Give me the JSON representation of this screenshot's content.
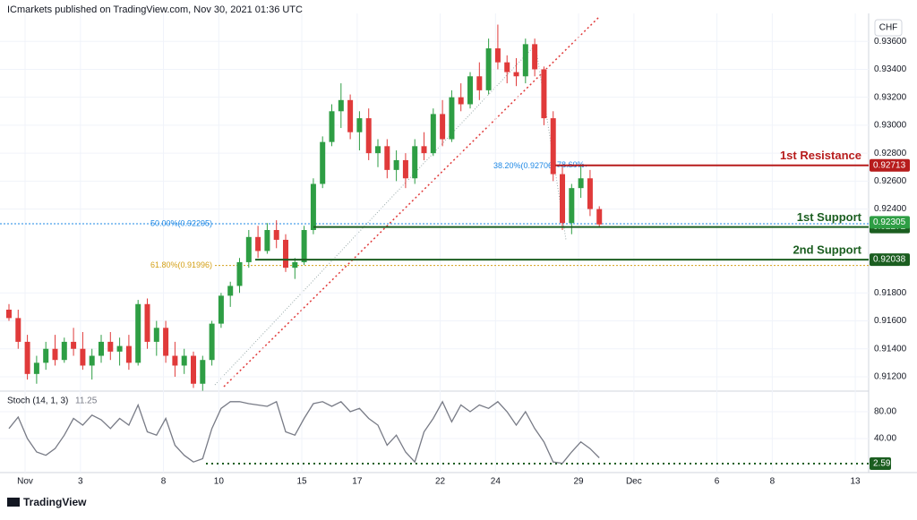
{
  "header": "ICmarkets published on TradingView.com, Nov 30, 2021 01:36 UTC",
  "currency": "CHF",
  "footer": "TradingView",
  "chart_data": [
    {
      "type": "candlestick",
      "up_color": "#2e9e44",
      "down_color": "#e03a3a",
      "xlim": [
        -0.97,
        93.2
      ],
      "ylim": [
        0.9111,
        0.938
      ],
      "xticks": [
        {
          "value": 1.75,
          "label": "Nov"
        },
        {
          "value": 7.75,
          "label": "3"
        },
        {
          "value": 16.75,
          "label": "8"
        },
        {
          "value": 22.75,
          "label": "10"
        },
        {
          "value": 31.75,
          "label": "15"
        },
        {
          "value": 37.75,
          "label": "17"
        },
        {
          "value": 46.75,
          "label": "22"
        },
        {
          "value": 52.75,
          "label": "24"
        },
        {
          "value": 61.75,
          "label": "29"
        },
        {
          "value": 67.75,
          "label": "Dec"
        },
        {
          "value": 76.75,
          "label": "6"
        },
        {
          "value": 82.75,
          "label": "8"
        },
        {
          "value": 91.75,
          "label": "13"
        }
      ],
      "yticks": [
        {
          "value": 0.936,
          "label": "0.93600"
        },
        {
          "value": 0.934,
          "label": "0.93400"
        },
        {
          "value": 0.932,
          "label": "0.93200"
        },
        {
          "value": 0.93,
          "label": "0.93000"
        },
        {
          "value": 0.928,
          "label": "0.92800"
        },
        {
          "value": 0.926,
          "label": "0.92600"
        },
        {
          "value": 0.924,
          "label": "0.92400"
        },
        {
          "value": 0.918,
          "label": "0.91800"
        },
        {
          "value": 0.916,
          "label": "0.91600"
        },
        {
          "value": 0.914,
          "label": "0.91400"
        },
        {
          "value": 0.912,
          "label": "0.91200"
        }
      ],
      "candles": [
        [
          0.9168,
          0.9172,
          0.916,
          0.9162
        ],
        [
          0.9162,
          0.9168,
          0.914,
          0.9145
        ],
        [
          0.9145,
          0.915,
          0.9118,
          0.9122
        ],
        [
          0.9122,
          0.9135,
          0.9115,
          0.913
        ],
        [
          0.913,
          0.9145,
          0.9125,
          0.914
        ],
        [
          0.914,
          0.915,
          0.9128,
          0.9132
        ],
        [
          0.9132,
          0.9148,
          0.913,
          0.9145
        ],
        [
          0.9145,
          0.9155,
          0.9135,
          0.914
        ],
        [
          0.914,
          0.9152,
          0.9125,
          0.9128
        ],
        [
          0.9128,
          0.914,
          0.9118,
          0.9135
        ],
        [
          0.9135,
          0.915,
          0.913,
          0.9145
        ],
        [
          0.9145,
          0.9152,
          0.9132,
          0.9138
        ],
        [
          0.9138,
          0.9148,
          0.9128,
          0.9142
        ],
        [
          0.9142,
          0.915,
          0.9125,
          0.913
        ],
        [
          0.913,
          0.9175,
          0.9128,
          0.9172
        ],
        [
          0.9172,
          0.9176,
          0.914,
          0.9145
        ],
        [
          0.9145,
          0.916,
          0.9135,
          0.9155
        ],
        [
          0.9155,
          0.916,
          0.913,
          0.9135
        ],
        [
          0.9135,
          0.9145,
          0.912,
          0.9128
        ],
        [
          0.9128,
          0.914,
          0.9122,
          0.9135
        ],
        [
          0.9135,
          0.9138,
          0.9112,
          0.9115
        ],
        [
          0.9115,
          0.9135,
          0.911,
          0.9132
        ],
        [
          0.9132,
          0.916,
          0.9128,
          0.9158
        ],
        [
          0.9158,
          0.918,
          0.9155,
          0.9178
        ],
        [
          0.9178,
          0.9188,
          0.917,
          0.9185
        ],
        [
          0.9185,
          0.9205,
          0.918,
          0.9202
        ],
        [
          0.9202,
          0.9225,
          0.9198,
          0.922
        ],
        [
          0.922,
          0.9228,
          0.9205,
          0.921
        ],
        [
          0.921,
          0.923,
          0.9208,
          0.9225
        ],
        [
          0.9225,
          0.9232,
          0.9212,
          0.9218
        ],
        [
          0.9218,
          0.9222,
          0.9195,
          0.9198
        ],
        [
          0.9198,
          0.9205,
          0.919,
          0.9202
        ],
        [
          0.9202,
          0.9228,
          0.92,
          0.9225
        ],
        [
          0.9225,
          0.9262,
          0.9222,
          0.9258
        ],
        [
          0.9258,
          0.9292,
          0.9255,
          0.9288
        ],
        [
          0.9288,
          0.9315,
          0.9285,
          0.931
        ],
        [
          0.931,
          0.933,
          0.9298,
          0.9318
        ],
        [
          0.9318,
          0.9322,
          0.929,
          0.9295
        ],
        [
          0.9295,
          0.931,
          0.9282,
          0.9305
        ],
        [
          0.9305,
          0.9312,
          0.9275,
          0.928
        ],
        [
          0.928,
          0.929,
          0.927,
          0.9285
        ],
        [
          0.9285,
          0.929,
          0.9262,
          0.9268
        ],
        [
          0.9268,
          0.9282,
          0.926,
          0.9275
        ],
        [
          0.9275,
          0.928,
          0.9255,
          0.9262
        ],
        [
          0.9262,
          0.929,
          0.9258,
          0.9285
        ],
        [
          0.9285,
          0.9295,
          0.9275,
          0.928
        ],
        [
          0.928,
          0.9312,
          0.9278,
          0.9308
        ],
        [
          0.9308,
          0.9318,
          0.9285,
          0.929
        ],
        [
          0.929,
          0.9325,
          0.9288,
          0.932
        ],
        [
          0.932,
          0.933,
          0.931,
          0.9315
        ],
        [
          0.9315,
          0.9338,
          0.9312,
          0.9335
        ],
        [
          0.9335,
          0.9345,
          0.9318,
          0.9325
        ],
        [
          0.9325,
          0.9362,
          0.9322,
          0.9355
        ],
        [
          0.9355,
          0.9372,
          0.934,
          0.9345
        ],
        [
          0.9345,
          0.935,
          0.933,
          0.9338
        ],
        [
          0.9338,
          0.9348,
          0.9328,
          0.9335
        ],
        [
          0.9335,
          0.9362,
          0.933,
          0.9358
        ],
        [
          0.9358,
          0.9362,
          0.9335,
          0.934
        ],
        [
          0.934,
          0.9342,
          0.93,
          0.9305
        ],
        [
          0.9305,
          0.931,
          0.926,
          0.9265
        ],
        [
          0.9265,
          0.927,
          0.9225,
          0.923
        ],
        [
          0.923,
          0.9258,
          0.9222,
          0.9255
        ],
        [
          0.9255,
          0.9272,
          0.9248,
          0.9262
        ],
        [
          0.9262,
          0.9268,
          0.9235,
          0.924
        ],
        [
          0.924,
          0.9242,
          0.9227,
          0.9229
        ]
      ],
      "levels": [
        {
          "name": "1st Resistance",
          "value": 0.92713,
          "color": "#b71c1c"
        },
        {
          "name": "1st Support",
          "value": 0.92272,
          "color": "#1b5e20"
        },
        {
          "name": "2nd Support",
          "value": 0.92038,
          "color": "#1b5e20"
        }
      ],
      "current_price": 0.92305,
      "fib_levels": [
        {
          "label": "38.20%(0.92706)",
          "value": 0.92706,
          "color": "#1e88e5"
        },
        {
          "label": "50.00%(0.92295)",
          "value": 0.92295,
          "color": "#1e88e5"
        },
        {
          "label": "61.80%(0.91996)",
          "value": 0.91996,
          "color": "#d4a017"
        }
      ],
      "annotation": "78.60%"
    },
    {
      "type": "line",
      "title": "Stoch (14, 1, 3)",
      "ylim": [
        -10.7,
        106.7
      ],
      "yticks": [
        {
          "value": 80,
          "label": "80.00"
        },
        {
          "value": 40,
          "label": "40.00"
        }
      ],
      "level": 2.59,
      "series": [
        {
          "color": "#787b86",
          "values": [
            55,
            72,
            40,
            20,
            15,
            25,
            45,
            70,
            60,
            75,
            68,
            55,
            70,
            60,
            90,
            50,
            45,
            70,
            30,
            15,
            5,
            10,
            55,
            85,
            95,
            95,
            92,
            90,
            88,
            95,
            50,
            45,
            70,
            92,
            95,
            88,
            95,
            80,
            85,
            70,
            60,
            30,
            45,
            20,
            5,
            50,
            70,
            95,
            65,
            90,
            80,
            90,
            85,
            95,
            80,
            60,
            80,
            55,
            35,
            5,
            3,
            20,
            35,
            25,
            11.25
          ]
        }
      ]
    }
  ]
}
